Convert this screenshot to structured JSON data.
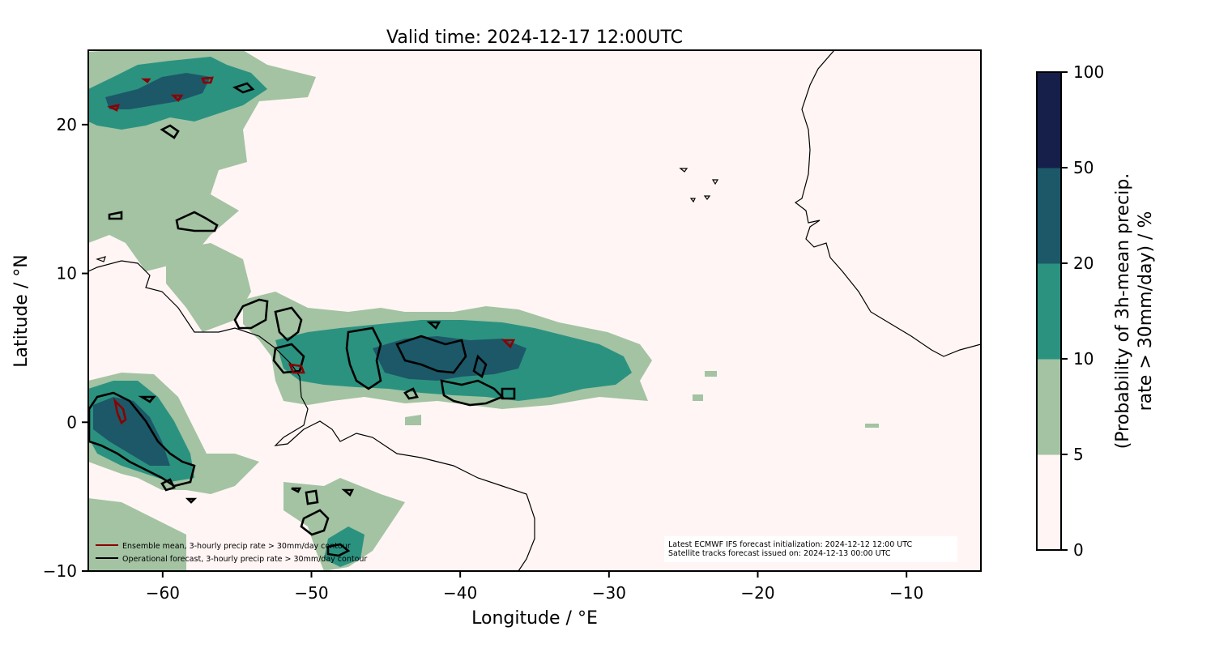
{
  "title": "Valid time: 2024-12-17 12:00UTC",
  "map": {
    "xlabel": "Longitude / °E",
    "ylabel": "Latitude / °N",
    "xlim": [
      -65,
      -5
    ],
    "ylim": [
      -10,
      25
    ],
    "xticks": [
      -60,
      -50,
      -40,
      -30,
      -20,
      -10
    ],
    "xtick_labels": [
      "−60",
      "−50",
      "−40",
      "−30",
      "−20",
      "−10"
    ],
    "yticks": [
      -10,
      0,
      10,
      20
    ],
    "ytick_labels": [
      "−10",
      "0",
      "10",
      "20"
    ],
    "background_color": "#fff5f4"
  },
  "legend": {
    "items": [
      {
        "label": "Ensemble mean, 3-hourly precip rate > 30mm/day contour",
        "color": "#8b0000"
      },
      {
        "label": "Operational forecast, 3-hourly precip rate > 30mm/day contour",
        "color": "#000000"
      }
    ]
  },
  "info_box": {
    "line1": "Latest ECMWF IFS forecast initialization: 2024-12-12 12:00 UTC",
    "line2": "Satellite tracks forecast issued on: 2024-12-13 00:00 UTC"
  },
  "colorbar": {
    "label_line1": "(Probability of 3h-mean precip.",
    "label_line2": "rate > 30mm/day) / %",
    "levels": [
      0,
      5,
      10,
      20,
      50,
      100
    ],
    "tick_labels": [
      "0",
      "5",
      "10",
      "20",
      "50",
      "100"
    ],
    "colors": [
      "#fff5f4",
      "#a3c3a3",
      "#2b9280",
      "#1c5868",
      "#161f4a"
    ]
  }
}
